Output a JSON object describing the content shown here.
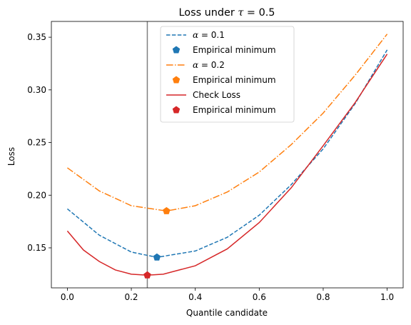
{
  "chart_data": {
    "type": "line",
    "title": "Loss under τ = 0.5",
    "title_prefix": "Loss under ",
    "title_symbol": "τ",
    "title_suffix": " = 0.5",
    "xlabel": "Quantile candidate",
    "ylabel": "Loss",
    "xlim": [
      -0.05,
      1.05
    ],
    "ylim": [
      0.112,
      0.365
    ],
    "xticks": [
      0.0,
      0.2,
      0.4,
      0.6,
      0.8,
      1.0
    ],
    "xtick_labels": [
      "0.0",
      "0.2",
      "0.4",
      "0.6",
      "0.8",
      "1.0"
    ],
    "yticks": [
      0.15,
      0.2,
      0.25,
      0.3,
      0.35
    ],
    "ytick_labels": [
      "0.15",
      "0.20",
      "0.25",
      "0.30",
      "0.35"
    ],
    "vertical_line_x": 0.25,
    "vertical_line_color": "#808080",
    "grid": false,
    "legend_position": "top-center",
    "series": [
      {
        "name": "α = 0.1",
        "name_symbol": "α",
        "name_suffix": " = 0.1",
        "color": "#1f77b4",
        "style": "dashed",
        "x": [
          0.0,
          0.1,
          0.2,
          0.28,
          0.4,
          0.5,
          0.6,
          0.7,
          0.8,
          0.9,
          1.0
        ],
        "values": [
          0.187,
          0.162,
          0.146,
          0.141,
          0.147,
          0.16,
          0.181,
          0.21,
          0.244,
          0.287,
          0.338
        ]
      },
      {
        "name": "Empirical minimum",
        "type": "marker",
        "color": "#1f77b4",
        "x": 0.28,
        "y": 0.141
      },
      {
        "name": "α = 0.2",
        "name_symbol": "α",
        "name_suffix": " = 0.2",
        "color": "#ff7f0e",
        "style": "dashdot",
        "x": [
          0.0,
          0.1,
          0.2,
          0.31,
          0.4,
          0.5,
          0.6,
          0.7,
          0.8,
          0.9,
          1.0
        ],
        "values": [
          0.226,
          0.204,
          0.19,
          0.185,
          0.19,
          0.203,
          0.222,
          0.248,
          0.278,
          0.314,
          0.353
        ]
      },
      {
        "name": "Empirical minimum",
        "type": "marker",
        "color": "#ff7f0e",
        "x": 0.31,
        "y": 0.185
      },
      {
        "name": "Check Loss",
        "color": "#d62728",
        "style": "solid",
        "x": [
          0.0,
          0.05,
          0.1,
          0.15,
          0.2,
          0.25,
          0.3,
          0.4,
          0.5,
          0.6,
          0.7,
          0.8,
          0.9,
          1.0
        ],
        "values": [
          0.166,
          0.148,
          0.137,
          0.129,
          0.125,
          0.124,
          0.125,
          0.133,
          0.149,
          0.174,
          0.207,
          0.247,
          0.288,
          0.334
        ]
      },
      {
        "name": "Empirical minimum",
        "type": "marker",
        "color": "#d62728",
        "x": 0.25,
        "y": 0.124
      }
    ]
  }
}
